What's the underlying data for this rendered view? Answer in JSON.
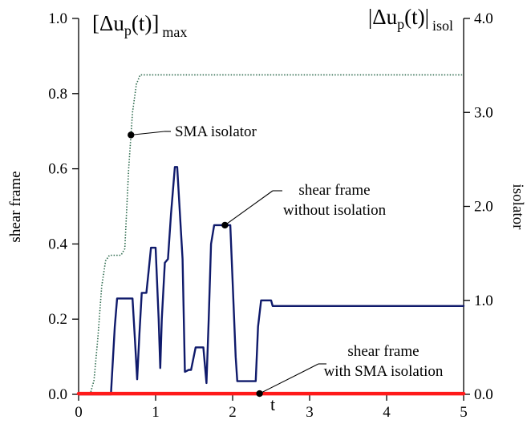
{
  "chart_data": {
    "type": "line",
    "title": "",
    "xlabel": "t",
    "xlim": [
      0,
      5
    ],
    "x_ticks": [
      "0",
      "1",
      "2",
      "3",
      "4",
      "5"
    ],
    "left_axis": {
      "label": "shear frame",
      "title": "[Δu",
      "title_sub": "p",
      "title_tail": "(t)]",
      "title_suffix": "max",
      "ylim": [
        0,
        1.0
      ],
      "ticks": [
        "0.0",
        "0.2",
        "0.4",
        "0.6",
        "0.8",
        "1.0"
      ]
    },
    "right_axis": {
      "label": "isolator",
      "title": "|Δu",
      "title_sub": "p",
      "title_tail": "(t)|",
      "title_suffix": "isol",
      "ylim": [
        0,
        4.0
      ],
      "ticks": [
        "0.0",
        "1.0",
        "2.0",
        "3.0",
        "4.0"
      ]
    },
    "series": [
      {
        "name": "SMA isolator",
        "axis": "right",
        "style": "dotted",
        "color": "#2e6b4e",
        "x": [
          0,
          0.15,
          0.2,
          0.25,
          0.3,
          0.35,
          0.4,
          0.55,
          0.6,
          0.65,
          0.7,
          0.75,
          0.8,
          0.9,
          5.0
        ],
        "y": [
          0,
          0,
          0.15,
          0.6,
          1.15,
          1.42,
          1.48,
          1.48,
          1.55,
          2.4,
          3.0,
          3.3,
          3.4,
          3.4,
          3.4
        ]
      },
      {
        "name": "shear frame without isolation",
        "axis": "left",
        "style": "solid",
        "color": "#0f1a6b",
        "x": [
          0,
          0.42,
          0.47,
          0.5,
          0.55,
          0.7,
          0.73,
          0.76,
          0.79,
          0.82,
          0.88,
          0.91,
          0.94,
          0.96,
          1.0,
          1.04,
          1.06,
          1.08,
          1.12,
          1.16,
          1.2,
          1.25,
          1.28,
          1.35,
          1.38,
          1.43,
          1.46,
          1.52,
          1.56,
          1.62,
          1.66,
          1.69,
          1.72,
          1.76,
          1.8,
          1.85,
          1.9,
          1.97,
          2.0,
          2.04,
          2.06,
          2.1,
          2.3,
          2.33,
          2.37,
          2.5,
          2.52,
          2.55,
          5.0
        ],
        "y": [
          0,
          0,
          0.18,
          0.255,
          0.255,
          0.255,
          0.15,
          0.04,
          0.16,
          0.27,
          0.27,
          0.33,
          0.39,
          0.39,
          0.39,
          0.2,
          0.07,
          0.2,
          0.35,
          0.36,
          0.48,
          0.605,
          0.605,
          0.36,
          0.06,
          0.065,
          0.065,
          0.125,
          0.125,
          0.125,
          0.03,
          0.2,
          0.4,
          0.45,
          0.45,
          0.45,
          0.45,
          0.45,
          0.3,
          0.1,
          0.035,
          0.035,
          0.035,
          0.18,
          0.25,
          0.25,
          0.235,
          0.235,
          0.235
        ]
      },
      {
        "name": "shear frame with SMA isolation",
        "axis": "left",
        "style": "solid",
        "color": "#ff1a1a",
        "x": [
          0,
          5.0
        ],
        "y": [
          0.002,
          0.002
        ]
      }
    ],
    "annotations": [
      {
        "text": [
          "SMA isolator"
        ],
        "series": 0,
        "point_x": 0.68
      },
      {
        "text": [
          "shear frame",
          "without isolation"
        ],
        "series": 1,
        "point_x": 1.9
      },
      {
        "text": [
          "shear frame",
          "with SMA isolation"
        ],
        "series": 2,
        "point_x": 2.35
      }
    ]
  }
}
